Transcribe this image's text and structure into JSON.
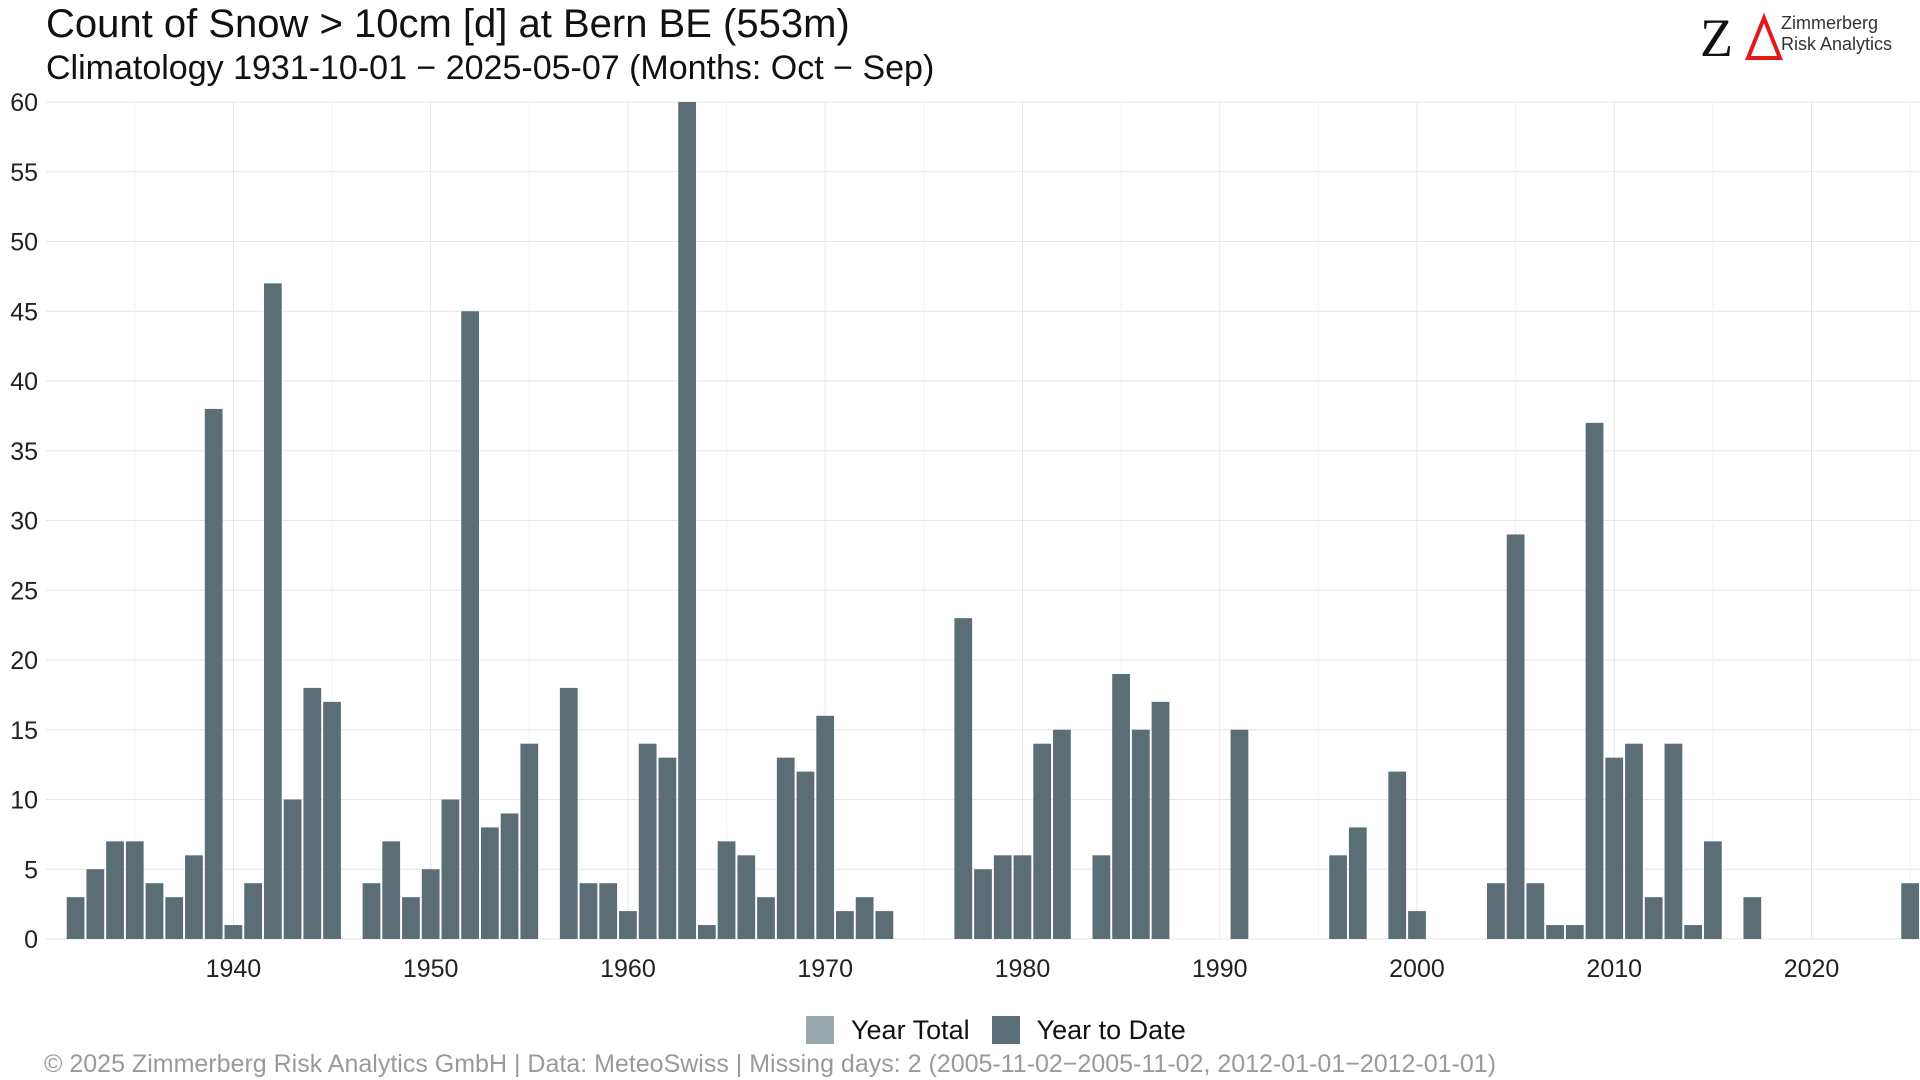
{
  "header": {
    "title": "Count of Snow > 10cm [d] at Bern  BE (553m)",
    "subtitle": "Climatology 1931-10-01 − 2025-05-07 (Months: Oct − Sep)"
  },
  "logo": {
    "mark": "ZΔ",
    "line1": "Zimmerberg",
    "line2": "Risk Analytics"
  },
  "footer": {
    "text": "©  2025 Zimmerberg Risk Analytics GmbH | Data: MeteoSwiss | Missing days: 2 (2005-11-02−2005-11-02, 2012-01-01−2012-01-01)"
  },
  "legend": [
    {
      "label": "Year Total",
      "color": "#9aa8ad"
    },
    {
      "label": "Year to Date",
      "color": "#5b6e75"
    }
  ],
  "colors": {
    "bar": "#5b6e75",
    "grid": "#e6e6e6",
    "logo_accent": "#e31a1c"
  },
  "chart_data": {
    "type": "bar",
    "xlim": [
      1931,
      2025
    ],
    "ylim": [
      0,
      60
    ],
    "yticks": [
      0,
      5,
      10,
      15,
      20,
      25,
      30,
      35,
      40,
      45,
      50,
      55,
      60
    ],
    "xticks": [
      1940,
      1950,
      1960,
      1970,
      1980,
      1990,
      2000,
      2010,
      2020
    ],
    "grid": true,
    "legend_position": "bottom",
    "series": [
      {
        "name": "Year to Date",
        "points": [
          [
            1932,
            3
          ],
          [
            1933,
            5
          ],
          [
            1934,
            7
          ],
          [
            1935,
            7
          ],
          [
            1936,
            4
          ],
          [
            1937,
            3
          ],
          [
            1938,
            6
          ],
          [
            1939,
            38
          ],
          [
            1940,
            1
          ],
          [
            1941,
            4
          ],
          [
            1942,
            47
          ],
          [
            1943,
            10
          ],
          [
            1944,
            18
          ],
          [
            1945,
            17
          ],
          [
            1947,
            4
          ],
          [
            1948,
            7
          ],
          [
            1949,
            3
          ],
          [
            1950,
            5
          ],
          [
            1951,
            10
          ],
          [
            1952,
            45
          ],
          [
            1953,
            8
          ],
          [
            1954,
            9
          ],
          [
            1955,
            14
          ],
          [
            1957,
            18
          ],
          [
            1958,
            4
          ],
          [
            1959,
            4
          ],
          [
            1960,
            2
          ],
          [
            1961,
            14
          ],
          [
            1962,
            13
          ],
          [
            1963,
            60
          ],
          [
            1964,
            1
          ],
          [
            1965,
            7
          ],
          [
            1966,
            6
          ],
          [
            1967,
            3
          ],
          [
            1968,
            13
          ],
          [
            1969,
            12
          ],
          [
            1970,
            16
          ],
          [
            1971,
            2
          ],
          [
            1972,
            3
          ],
          [
            1973,
            2
          ],
          [
            1977,
            23
          ],
          [
            1978,
            5
          ],
          [
            1979,
            6
          ],
          [
            1980,
            6
          ],
          [
            1981,
            14
          ],
          [
            1982,
            15
          ],
          [
            1984,
            6
          ],
          [
            1985,
            19
          ],
          [
            1986,
            15
          ],
          [
            1987,
            17
          ],
          [
            1991,
            15
          ],
          [
            1996,
            6
          ],
          [
            1997,
            8
          ],
          [
            1999,
            12
          ],
          [
            2000,
            2
          ],
          [
            2004,
            4
          ],
          [
            2005,
            29
          ],
          [
            2006,
            4
          ],
          [
            2007,
            1
          ],
          [
            2008,
            1
          ],
          [
            2009,
            37
          ],
          [
            2010,
            13
          ],
          [
            2011,
            14
          ],
          [
            2012,
            3
          ],
          [
            2013,
            14
          ],
          [
            2014,
            1
          ],
          [
            2015,
            7
          ],
          [
            2017,
            3
          ],
          [
            2025,
            4
          ]
        ]
      }
    ]
  }
}
